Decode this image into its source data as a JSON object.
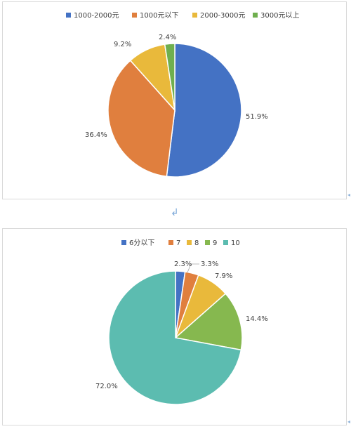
{
  "colors": {
    "blue": "#4472c4",
    "orange": "#e07f3e",
    "gold": "#e9b93b",
    "green": "#6faf4f",
    "teal": "#5cbcb0",
    "lime": "#86b84f"
  },
  "decor": {
    "return_mark": "↲",
    "edge_mark": "◂"
  },
  "chart_data": [
    {
      "type": "pie",
      "legend_position": "top",
      "categories": [
        "1000-2000元",
        "1000元以下",
        "2000-3000元",
        "3000元以上"
      ],
      "values": [
        51.9,
        36.4,
        9.2,
        2.4
      ],
      "labels": [
        "51.9%",
        "36.4%",
        "9.2%",
        "2.4%"
      ],
      "colors": [
        "#4472c4",
        "#e07f3e",
        "#e9b93b",
        "#6faf4f"
      ]
    },
    {
      "type": "pie",
      "legend_position": "top",
      "categories": [
        "6分以下",
        "7",
        "8",
        "9",
        "10"
      ],
      "values": [
        2.3,
        3.3,
        7.9,
        14.4,
        72.0
      ],
      "labels": [
        "2.3%",
        "3.3%",
        "7.9%",
        "14.4%",
        "72.0%"
      ],
      "colors": [
        "#4472c4",
        "#e07f3e",
        "#e9b93b",
        "#86b84f",
        "#5cbcb0"
      ]
    }
  ]
}
